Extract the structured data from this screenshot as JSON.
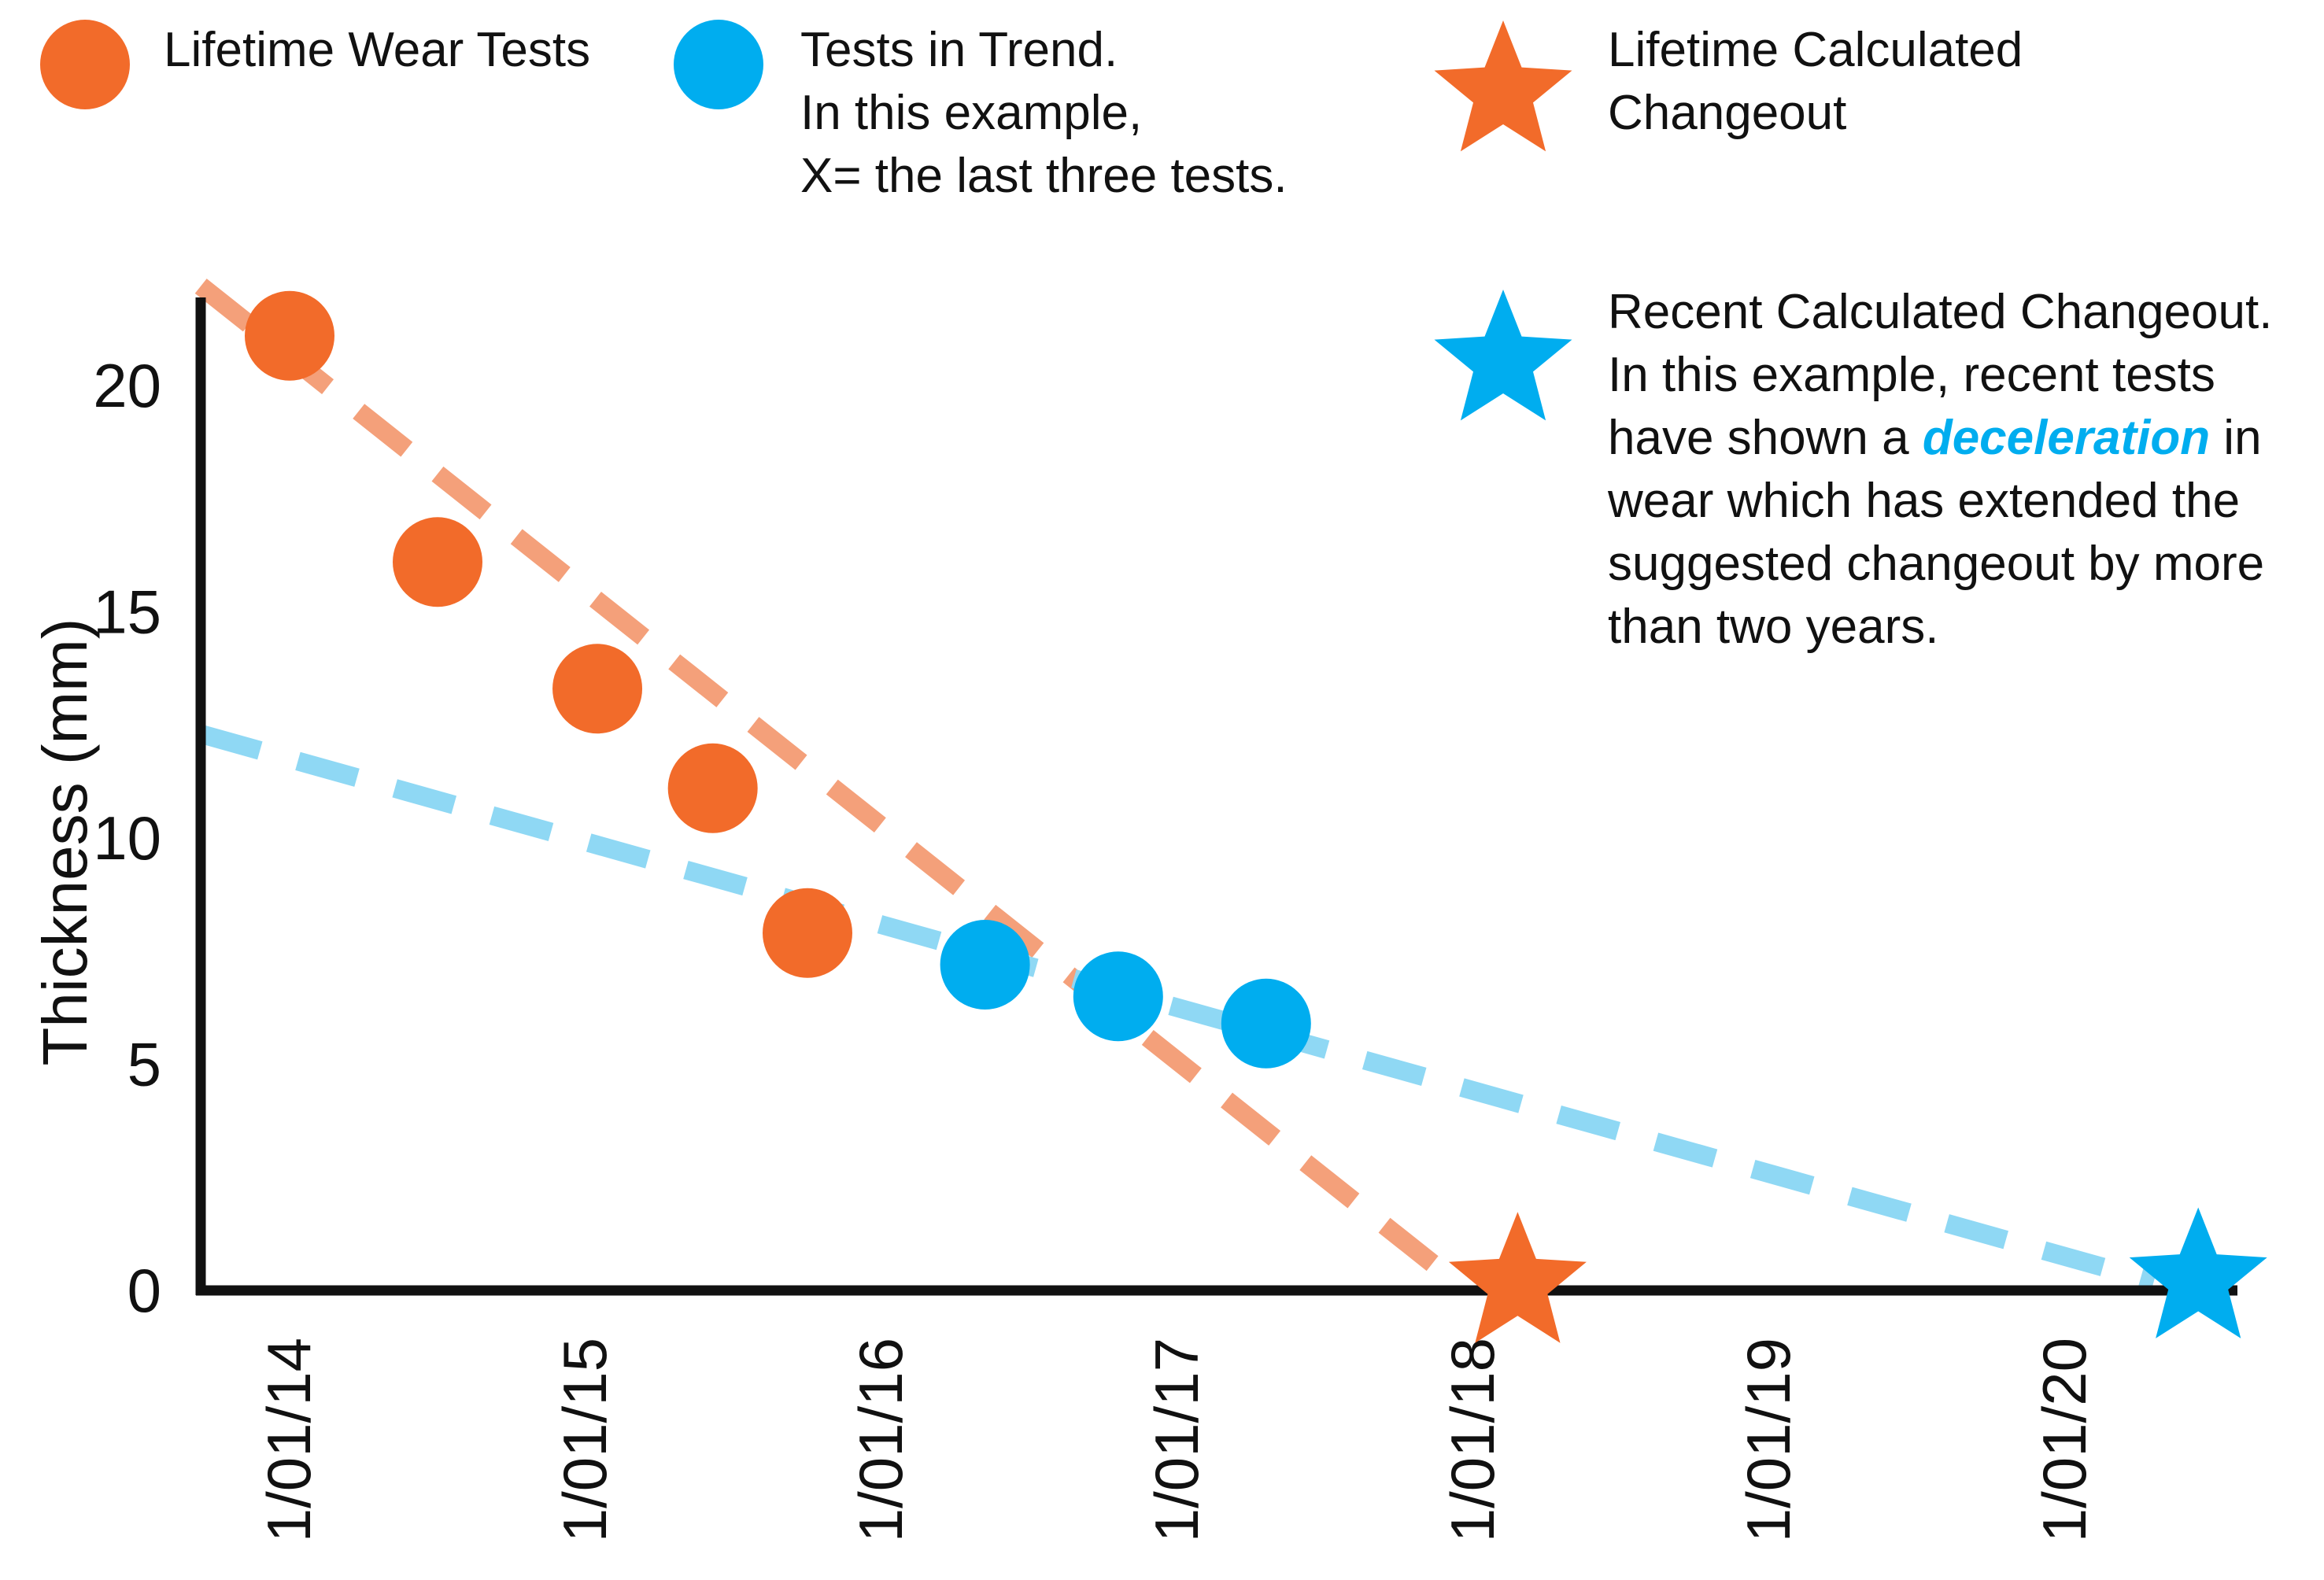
{
  "legend": {
    "lifetime_tests": {
      "label": "Lifetime Wear Tests",
      "color": "#f26b2a"
    },
    "trend_tests": {
      "lines": [
        "Tests in Trend.",
        "In this example,",
        "X= the last three tests."
      ],
      "color": "#00adef"
    },
    "lifetime_changeout": {
      "lines": [
        "Lifetime Calculated",
        "Changeout"
      ],
      "color": "#f26b2a"
    },
    "recent_changeout": {
      "line1": "Recent Calculated Changeout.",
      "line2": "In this example, recent tests",
      "line3_before": "have shown a ",
      "line3_emphasis": "deceleration",
      "line3_after": " in",
      "line4": "wear which has extended the",
      "line5": "suggested changeout by more",
      "line6": "than two years.",
      "color": "#00adef"
    }
  },
  "chart_data": {
    "type": "scatter",
    "ylabel": "Thickness (mm)",
    "xlabel": "",
    "ylim": [
      0,
      22
    ],
    "y_ticks": [
      0,
      5,
      10,
      15,
      20
    ],
    "x_ticks": [
      "1/01/14",
      "1/01/15",
      "1/01/16",
      "1/01/17",
      "1/01/18",
      "1/01/19",
      "1/01/20"
    ],
    "x_unit": "years since 1/01/14",
    "xlim": [
      -0.3,
      6.55
    ],
    "series": [
      {
        "name": "Lifetime Wear Tests",
        "color": "#f26b2a",
        "points": [
          [
            0.0,
            21.1
          ],
          [
            0.5,
            16.1
          ],
          [
            1.04,
            13.3
          ],
          [
            1.43,
            11.1
          ],
          [
            1.75,
            7.9
          ]
        ]
      },
      {
        "name": "Tests in Trend.",
        "color": "#00adef",
        "points": [
          [
            2.35,
            7.2
          ],
          [
            2.8,
            6.5
          ],
          [
            3.3,
            5.9
          ]
        ]
      }
    ],
    "trend_lines": [
      {
        "color": "#f4a07a",
        "from": [
          -0.3,
          22.2
        ],
        "to": [
          3.9,
          0.4
        ]
      },
      {
        "color": "#8fd8f4",
        "from": [
          -0.3,
          12.3
        ],
        "to": [
          6.3,
          0.2
        ]
      }
    ],
    "markers": [
      {
        "name": "Lifetime Calculated Changeout",
        "shape": "star",
        "color": "#f26b2a",
        "x": 4.15,
        "y": 0.1
      },
      {
        "name": "Recent Calculated Changeout.",
        "shape": "star",
        "color": "#00adef",
        "x": 6.45,
        "y": 0.2
      }
    ]
  }
}
